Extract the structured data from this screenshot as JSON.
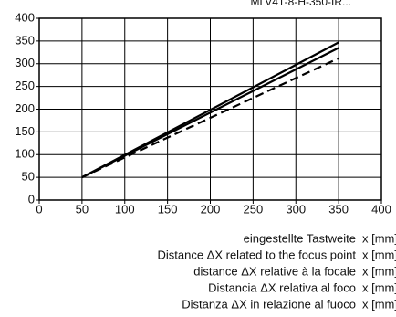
{
  "chart_data": {
    "type": "line",
    "subtitle": "MLV41-8-H-350-IR...",
    "x": [
      50,
      350
    ],
    "series": [
      {
        "color": "#000000",
        "dash": false,
        "values": [
          50,
          347
        ]
      },
      {
        "color": "#000000",
        "dash": false,
        "values": [
          50,
          335
        ]
      },
      {
        "color": "#000000",
        "dash": true,
        "values": [
          50,
          312
        ]
      }
    ],
    "xlim": [
      0,
      400
    ],
    "ylim": [
      0,
      400
    ],
    "xticks": [
      0,
      50,
      100,
      150,
      200,
      250,
      300,
      350,
      400
    ],
    "yticks": [
      0,
      50,
      100,
      150,
      200,
      250,
      300,
      350,
      400
    ],
    "grid": true,
    "captions": [
      {
        "label": "eingestellte Tastweite",
        "unit": "x [mm]"
      },
      {
        "label": "Distance ΔX  related to the focus point",
        "unit": "x [mm]"
      },
      {
        "label": "distance ΔX relative à la focale",
        "unit": "x [mm]"
      },
      {
        "label": "Distancia ΔX  relativa al foco",
        "unit": "x [mm]"
      },
      {
        "label": "Distanza ΔX  in relazione al fuoco",
        "unit": "x [mm]"
      }
    ]
  }
}
